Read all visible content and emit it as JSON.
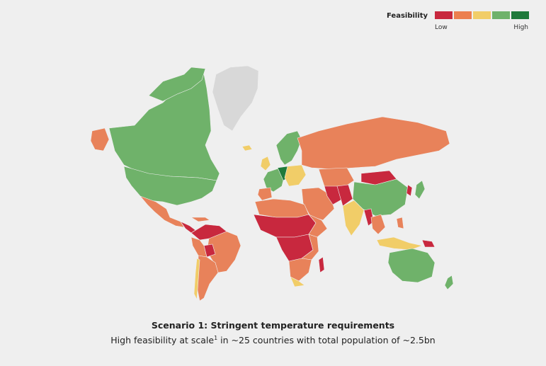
{
  "legend": {
    "title": "Feasibility",
    "low": "Low",
    "high": "High",
    "scale_colors": [
      "#c8283e",
      "#ec7f4f",
      "#f1cd68",
      "#6fb26a",
      "#1f7a3b"
    ]
  },
  "map_colors": {
    "greenland": "#d8d8d8",
    "low": "#c8283e",
    "medium_low": "#e8825a",
    "medium": "#f1cd68",
    "medium_high": "#6fb26a",
    "high": "#1f7a3b"
  },
  "caption": {
    "title": "Scenario 1: Stringent temperature requirements",
    "subtitle_before": "High feasibility at scale",
    "footnote": "1",
    "subtitle_after": " in ~25 countries with total population of ~2.5bn"
  }
}
